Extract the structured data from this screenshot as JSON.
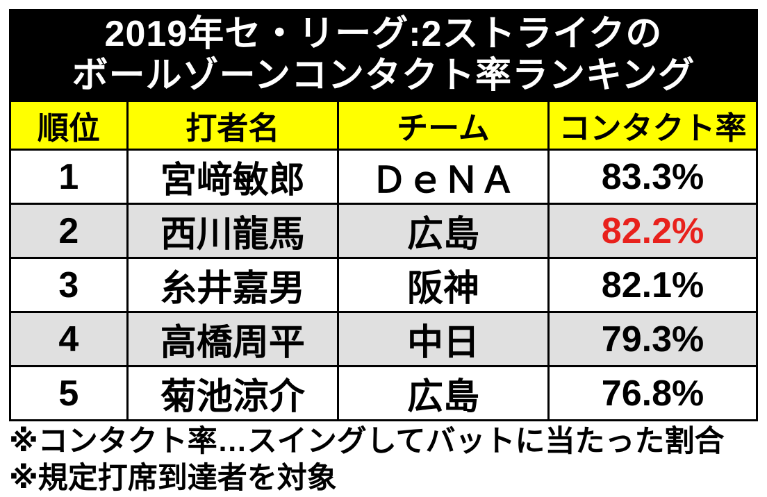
{
  "chart_data": {
    "type": "table",
    "title": "2019年セ・リーグ:2ストライクのボールゾーンコンタクト率ランキング",
    "title_lines": [
      "2019年セ・リーグ:2ストライクの",
      "ボールゾーンコンタクト率ランキング"
    ],
    "columns": [
      "順位",
      "打者名",
      "チーム",
      "コンタクト率"
    ],
    "rows": [
      [
        "1",
        "宮﨑敏郎",
        "ＤｅＮＡ",
        "83.3%"
      ],
      [
        "2",
        "西川龍馬",
        "広島",
        "82.2%"
      ],
      [
        "3",
        "糸井嘉男",
        "阪神",
        "82.1%"
      ],
      [
        "4",
        "高橋周平",
        "中日",
        "79.3%"
      ],
      [
        "5",
        "菊池涼介",
        "広島",
        "76.8%"
      ]
    ],
    "rates_numeric": [
      83.3,
      82.2,
      82.1,
      79.3,
      76.8
    ],
    "highlight": {
      "row_index": 1,
      "column_index": 3,
      "value": "82.2%",
      "text_color": "#e8211c"
    },
    "shaded_row_indices": [
      1,
      3
    ]
  },
  "footnotes": [
    "※コンタクト率…スイングしてバットに当たった割合",
    "※規定打席到達者を対象"
  ],
  "colors": {
    "title_bg": "#000000",
    "title_text": "#ffffff",
    "header_bg": "#ffff00",
    "row_bg": "#ffffff",
    "shaded_row_bg": "#e0e0e0",
    "highlight_rate": "#e8211c",
    "border": "#000000"
  }
}
